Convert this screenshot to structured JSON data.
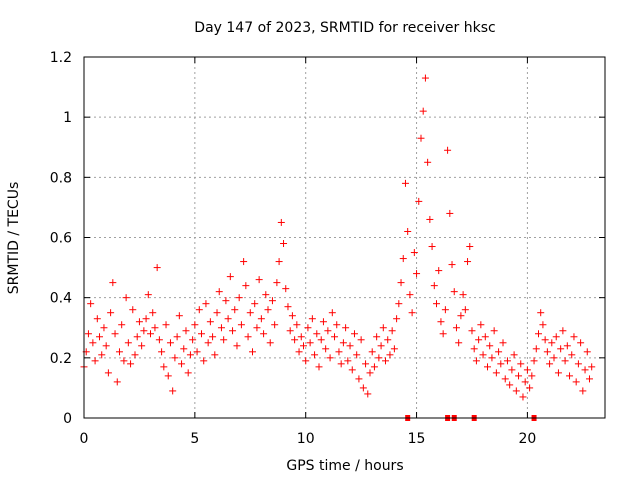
{
  "chart_data": {
    "type": "scatter",
    "title": "Day 147 of 2023, SRMTID for receiver hksc",
    "xlabel": "GPS time / hours",
    "ylabel": "SRMTID / TECUs",
    "xlim": [
      0,
      23.5
    ],
    "ylim": [
      0,
      1.2
    ],
    "xticks": [
      0,
      5,
      10,
      15,
      20
    ],
    "xtick_labels": [
      "0",
      "5",
      "10",
      "15",
      "20"
    ],
    "yticks": [
      0,
      0.2,
      0.4,
      0.6,
      0.8,
      1.0,
      1.2
    ],
    "ytick_labels": [
      "0",
      "0.2",
      "0.4",
      "0.6",
      "0.8",
      "1",
      "1.2"
    ],
    "grid": true,
    "marker": "plus",
    "color": "#ff0000",
    "series": [
      {
        "name": "SRMTID",
        "points": [
          [
            0.0,
            0.17
          ],
          [
            0.1,
            0.22
          ],
          [
            0.2,
            0.28
          ],
          [
            0.3,
            0.38
          ],
          [
            0.4,
            0.25
          ],
          [
            0.5,
            0.19
          ],
          [
            0.6,
            0.33
          ],
          [
            0.7,
            0.27
          ],
          [
            0.8,
            0.21
          ],
          [
            0.9,
            0.3
          ],
          [
            1.0,
            0.24
          ],
          [
            1.1,
            0.15
          ],
          [
            1.2,
            0.35
          ],
          [
            1.3,
            0.45
          ],
          [
            1.4,
            0.28
          ],
          [
            1.5,
            0.12
          ],
          [
            1.6,
            0.22
          ],
          [
            1.7,
            0.31
          ],
          [
            1.8,
            0.19
          ],
          [
            1.9,
            0.4
          ],
          [
            2.0,
            0.25
          ],
          [
            2.1,
            0.18
          ],
          [
            2.2,
            0.36
          ],
          [
            2.3,
            0.21
          ],
          [
            2.4,
            0.27
          ],
          [
            2.5,
            0.32
          ],
          [
            2.6,
            0.24
          ],
          [
            2.7,
            0.29
          ],
          [
            2.8,
            0.33
          ],
          [
            2.9,
            0.41
          ],
          [
            3.0,
            0.28
          ],
          [
            3.1,
            0.35
          ],
          [
            3.2,
            0.3
          ],
          [
            3.3,
            0.5
          ],
          [
            3.4,
            0.26
          ],
          [
            3.5,
            0.22
          ],
          [
            3.6,
            0.17
          ],
          [
            3.7,
            0.31
          ],
          [
            3.8,
            0.14
          ],
          [
            3.9,
            0.25
          ],
          [
            4.0,
            0.09
          ],
          [
            4.1,
            0.2
          ],
          [
            4.2,
            0.27
          ],
          [
            4.3,
            0.34
          ],
          [
            4.4,
            0.18
          ],
          [
            4.5,
            0.23
          ],
          [
            4.6,
            0.29
          ],
          [
            4.7,
            0.15
          ],
          [
            4.8,
            0.21
          ],
          [
            4.9,
            0.26
          ],
          [
            5.0,
            0.31
          ],
          [
            5.1,
            0.22
          ],
          [
            5.2,
            0.36
          ],
          [
            5.3,
            0.28
          ],
          [
            5.4,
            0.19
          ],
          [
            5.5,
            0.38
          ],
          [
            5.6,
            0.25
          ],
          [
            5.7,
            0.32
          ],
          [
            5.8,
            0.27
          ],
          [
            5.9,
            0.21
          ],
          [
            6.0,
            0.35
          ],
          [
            6.1,
            0.42
          ],
          [
            6.2,
            0.3
          ],
          [
            6.3,
            0.26
          ],
          [
            6.4,
            0.39
          ],
          [
            6.5,
            0.33
          ],
          [
            6.6,
            0.47
          ],
          [
            6.7,
            0.29
          ],
          [
            6.8,
            0.36
          ],
          [
            6.9,
            0.24
          ],
          [
            7.0,
            0.4
          ],
          [
            7.1,
            0.31
          ],
          [
            7.2,
            0.52
          ],
          [
            7.3,
            0.44
          ],
          [
            7.4,
            0.27
          ],
          [
            7.5,
            0.35
          ],
          [
            7.6,
            0.22
          ],
          [
            7.7,
            0.38
          ],
          [
            7.8,
            0.3
          ],
          [
            7.9,
            0.46
          ],
          [
            8.0,
            0.33
          ],
          [
            8.1,
            0.28
          ],
          [
            8.2,
            0.41
          ],
          [
            8.3,
            0.36
          ],
          [
            8.4,
            0.25
          ],
          [
            8.5,
            0.39
          ],
          [
            8.6,
            0.31
          ],
          [
            8.7,
            0.45
          ],
          [
            8.8,
            0.52
          ],
          [
            8.9,
            0.65
          ],
          [
            9.0,
            0.58
          ],
          [
            9.1,
            0.43
          ],
          [
            9.2,
            0.37
          ],
          [
            9.3,
            0.29
          ],
          [
            9.4,
            0.34
          ],
          [
            9.5,
            0.26
          ],
          [
            9.6,
            0.31
          ],
          [
            9.7,
            0.22
          ],
          [
            9.8,
            0.27
          ],
          [
            9.9,
            0.24
          ],
          [
            10.0,
            0.19
          ],
          [
            10.1,
            0.3
          ],
          [
            10.2,
            0.25
          ],
          [
            10.3,
            0.33
          ],
          [
            10.4,
            0.21
          ],
          [
            10.5,
            0.28
          ],
          [
            10.6,
            0.17
          ],
          [
            10.7,
            0.26
          ],
          [
            10.8,
            0.32
          ],
          [
            10.9,
            0.23
          ],
          [
            11.0,
            0.29
          ],
          [
            11.1,
            0.2
          ],
          [
            11.2,
            0.35
          ],
          [
            11.3,
            0.27
          ],
          [
            11.4,
            0.31
          ],
          [
            11.5,
            0.22
          ],
          [
            11.6,
            0.18
          ],
          [
            11.7,
            0.25
          ],
          [
            11.8,
            0.3
          ],
          [
            11.9,
            0.19
          ],
          [
            12.0,
            0.24
          ],
          [
            12.1,
            0.16
          ],
          [
            12.2,
            0.28
          ],
          [
            12.3,
            0.21
          ],
          [
            12.4,
            0.13
          ],
          [
            12.5,
            0.26
          ],
          [
            12.6,
            0.1
          ],
          [
            12.7,
            0.18
          ],
          [
            12.8,
            0.08
          ],
          [
            12.9,
            0.15
          ],
          [
            13.0,
            0.22
          ],
          [
            13.1,
            0.17
          ],
          [
            13.2,
            0.27
          ],
          [
            13.3,
            0.2
          ],
          [
            13.4,
            0.24
          ],
          [
            13.5,
            0.3
          ],
          [
            13.6,
            0.19
          ],
          [
            13.7,
            0.26
          ],
          [
            13.8,
            0.21
          ],
          [
            13.9,
            0.29
          ],
          [
            14.0,
            0.23
          ],
          [
            14.1,
            0.33
          ],
          [
            14.2,
            0.38
          ],
          [
            14.3,
            0.45
          ],
          [
            14.4,
            0.53
          ],
          [
            14.5,
            0.78
          ],
          [
            14.6,
            0.62
          ],
          [
            14.7,
            0.41
          ],
          [
            14.8,
            0.35
          ],
          [
            14.9,
            0.55
          ],
          [
            15.0,
            0.48
          ],
          [
            15.1,
            0.72
          ],
          [
            15.2,
            0.93
          ],
          [
            15.3,
            1.02
          ],
          [
            15.4,
            1.13
          ],
          [
            15.5,
            0.85
          ],
          [
            15.6,
            0.66
          ],
          [
            15.7,
            0.57
          ],
          [
            15.8,
            0.44
          ],
          [
            15.9,
            0.38
          ],
          [
            16.0,
            0.49
          ],
          [
            16.1,
            0.32
          ],
          [
            16.2,
            0.28
          ],
          [
            16.3,
            0.36
          ],
          [
            16.4,
            0.89
          ],
          [
            16.5,
            0.68
          ],
          [
            16.6,
            0.51
          ],
          [
            16.7,
            0.42
          ],
          [
            16.8,
            0.3
          ],
          [
            16.9,
            0.25
          ],
          [
            17.0,
            0.34
          ],
          [
            17.1,
            0.41
          ],
          [
            17.2,
            0.36
          ],
          [
            17.3,
            0.52
          ],
          [
            17.4,
            0.57
          ],
          [
            17.5,
            0.29
          ],
          [
            17.6,
            0.23
          ],
          [
            17.7,
            0.19
          ],
          [
            17.8,
            0.26
          ],
          [
            17.9,
            0.31
          ],
          [
            18.0,
            0.21
          ],
          [
            18.1,
            0.27
          ],
          [
            18.2,
            0.17
          ],
          [
            18.3,
            0.24
          ],
          [
            18.4,
            0.2
          ],
          [
            18.5,
            0.29
          ],
          [
            18.6,
            0.15
          ],
          [
            18.7,
            0.22
          ],
          [
            18.8,
            0.18
          ],
          [
            18.9,
            0.25
          ],
          [
            19.0,
            0.13
          ],
          [
            19.1,
            0.19
          ],
          [
            19.2,
            0.11
          ],
          [
            19.3,
            0.16
          ],
          [
            19.4,
            0.21
          ],
          [
            19.5,
            0.09
          ],
          [
            19.6,
            0.14
          ],
          [
            19.7,
            0.18
          ],
          [
            19.8,
            0.07
          ],
          [
            19.9,
            0.12
          ],
          [
            20.0,
            0.16
          ],
          [
            20.1,
            0.1
          ],
          [
            20.2,
            0.14
          ],
          [
            20.3,
            0.19
          ],
          [
            20.4,
            0.23
          ],
          [
            20.5,
            0.28
          ],
          [
            20.6,
            0.35
          ],
          [
            20.7,
            0.31
          ],
          [
            20.8,
            0.26
          ],
          [
            20.9,
            0.22
          ],
          [
            21.0,
            0.18
          ],
          [
            21.1,
            0.25
          ],
          [
            21.2,
            0.2
          ],
          [
            21.3,
            0.27
          ],
          [
            21.4,
            0.15
          ],
          [
            21.5,
            0.23
          ],
          [
            21.6,
            0.29
          ],
          [
            21.7,
            0.19
          ],
          [
            21.8,
            0.24
          ],
          [
            21.9,
            0.14
          ],
          [
            22.0,
            0.21
          ],
          [
            22.1,
            0.27
          ],
          [
            22.2,
            0.12
          ],
          [
            22.3,
            0.18
          ],
          [
            22.4,
            0.25
          ],
          [
            22.5,
            0.09
          ],
          [
            22.6,
            0.16
          ],
          [
            22.7,
            0.22
          ],
          [
            22.8,
            0.13
          ],
          [
            22.9,
            0.17
          ]
        ]
      }
    ],
    "baseline_markers": [
      14.6,
      16.4,
      16.7,
      17.6,
      20.3
    ]
  }
}
